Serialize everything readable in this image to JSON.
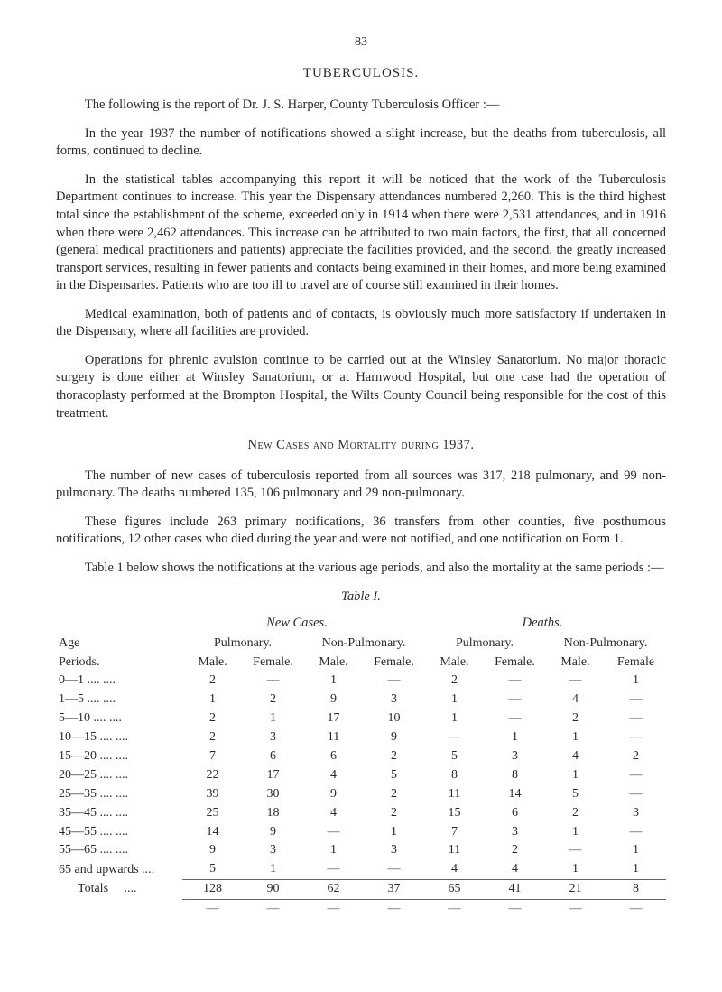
{
  "page_number": "83",
  "title": "TUBERCULOSIS.",
  "paras": [
    "The following is the report of Dr. J. S. Harper, County Tuberculosis Officer :—",
    "In the year 1937 the number of notifications showed a slight increase, but the deaths from tuberculosis, all forms, continued to decline.",
    "In the statistical tables accompanying this report it will be noticed that the work of the Tuberculosis Department continues to increase. This year the Dispensary attendances numbered 2,260. This is the third highest total since the establishment of the scheme, exceeded only in 1914 when there were 2,531 attendances, and in 1916 when there were 2,462 attendances. This increase can be attributed to two main factors, the first, that all concerned (general medical practitioners and patients) appreciate the facilities provided, and the second, the greatly increased transport services, resulting in fewer patients and contacts being examined in their homes, and more being examined in the Dispensaries. Patients who are too ill to travel are of course still examined in their homes.",
    "Medical examination, both of patients and of contacts, is obviously much more satisfactory if undertaken in the Dispensary, where all facilities are provided.",
    "Operations for phrenic avulsion continue to be carried out at the Winsley Sanatorium. No major thoracic surgery is done either at Winsley Sanatorium, or at Harnwood Hospital, but one case had the operation of thoracoplasty performed at the Brompton Hospital, the Wilts County Council being responsible for the cost of this treatment.",
    "",
    "The number of new cases of tuberculosis reported from all sources was 317, 218 pulmonary, and 99 non-pulmonary. The deaths numbered 135, 106 pulmonary and 29 non-pulmonary.",
    "These figures include 263 primary notifications, 36 transfers from other counties, five posthumous notifications, 12 other cases who died during the year and were not notified, and one notification on Form 1.",
    "Table 1 below shows the notifications at the various age periods, and also the mortality at the same periods :—"
  ],
  "subhead": "New Cases and Mortality during 1937.",
  "table": {
    "caption": "Table I.",
    "group_headers": [
      "New Cases.",
      "Deaths."
    ],
    "sub_groups": [
      "Pulmonary.",
      "Non-Pulmonary.",
      "Pulmonary.",
      "Non-Pulmonary."
    ],
    "col_labels": [
      "Male.",
      "Female.",
      "Male.",
      "Female.",
      "Male.",
      "Female.",
      "Male.",
      "Female"
    ],
    "row_header_top": "Age",
    "row_header_bot": "Periods.",
    "rows": [
      {
        "period": "0—1",
        "dots": "....   ....",
        "v": [
          "2",
          "—",
          "1",
          "—",
          "2",
          "—",
          "—",
          "1"
        ]
      },
      {
        "period": "1—5",
        "dots": "....   ....",
        "v": [
          "1",
          "2",
          "9",
          "3",
          "1",
          "—",
          "4",
          "—"
        ]
      },
      {
        "period": "5—10",
        "dots": "....   ....",
        "v": [
          "2",
          "1",
          "17",
          "10",
          "1",
          "—",
          "2",
          "—"
        ]
      },
      {
        "period": "10—15",
        "dots": "....   ....",
        "v": [
          "2",
          "3",
          "11",
          "9",
          "—",
          "1",
          "1",
          "—"
        ]
      },
      {
        "period": "15—20",
        "dots": "....   ....",
        "v": [
          "7",
          "6",
          "6",
          "2",
          "5",
          "3",
          "4",
          "2"
        ]
      },
      {
        "period": "20—25",
        "dots": "....   ....",
        "v": [
          "22",
          "17",
          "4",
          "5",
          "8",
          "8",
          "1",
          "—"
        ]
      },
      {
        "period": "25—35",
        "dots": "....   ....",
        "v": [
          "39",
          "30",
          "9",
          "2",
          "11",
          "14",
          "5",
          "—"
        ]
      },
      {
        "period": "35—45",
        "dots": "....   ....",
        "v": [
          "25",
          "18",
          "4",
          "2",
          "15",
          "6",
          "2",
          "3"
        ]
      },
      {
        "period": "45—55",
        "dots": "....   ....",
        "v": [
          "14",
          "9",
          "—",
          "1",
          "7",
          "3",
          "1",
          "—"
        ]
      },
      {
        "period": "55—65",
        "dots": "....   ....",
        "v": [
          "9",
          "3",
          "1",
          "3",
          "11",
          "2",
          "—",
          "1"
        ]
      },
      {
        "period": "65 and upwards",
        "dots": "....",
        "v": [
          "5",
          "1",
          "—",
          "—",
          "4",
          "4",
          "1",
          "1"
        ]
      }
    ],
    "totals": {
      "label": "Totals",
      "dots": "....",
      "v": [
        "128",
        "90",
        "62",
        "37",
        "65",
        "41",
        "21",
        "8"
      ]
    }
  },
  "colors": {
    "text": "#2a2a2a",
    "rule": "#666666",
    "bg": "#ffffff"
  }
}
